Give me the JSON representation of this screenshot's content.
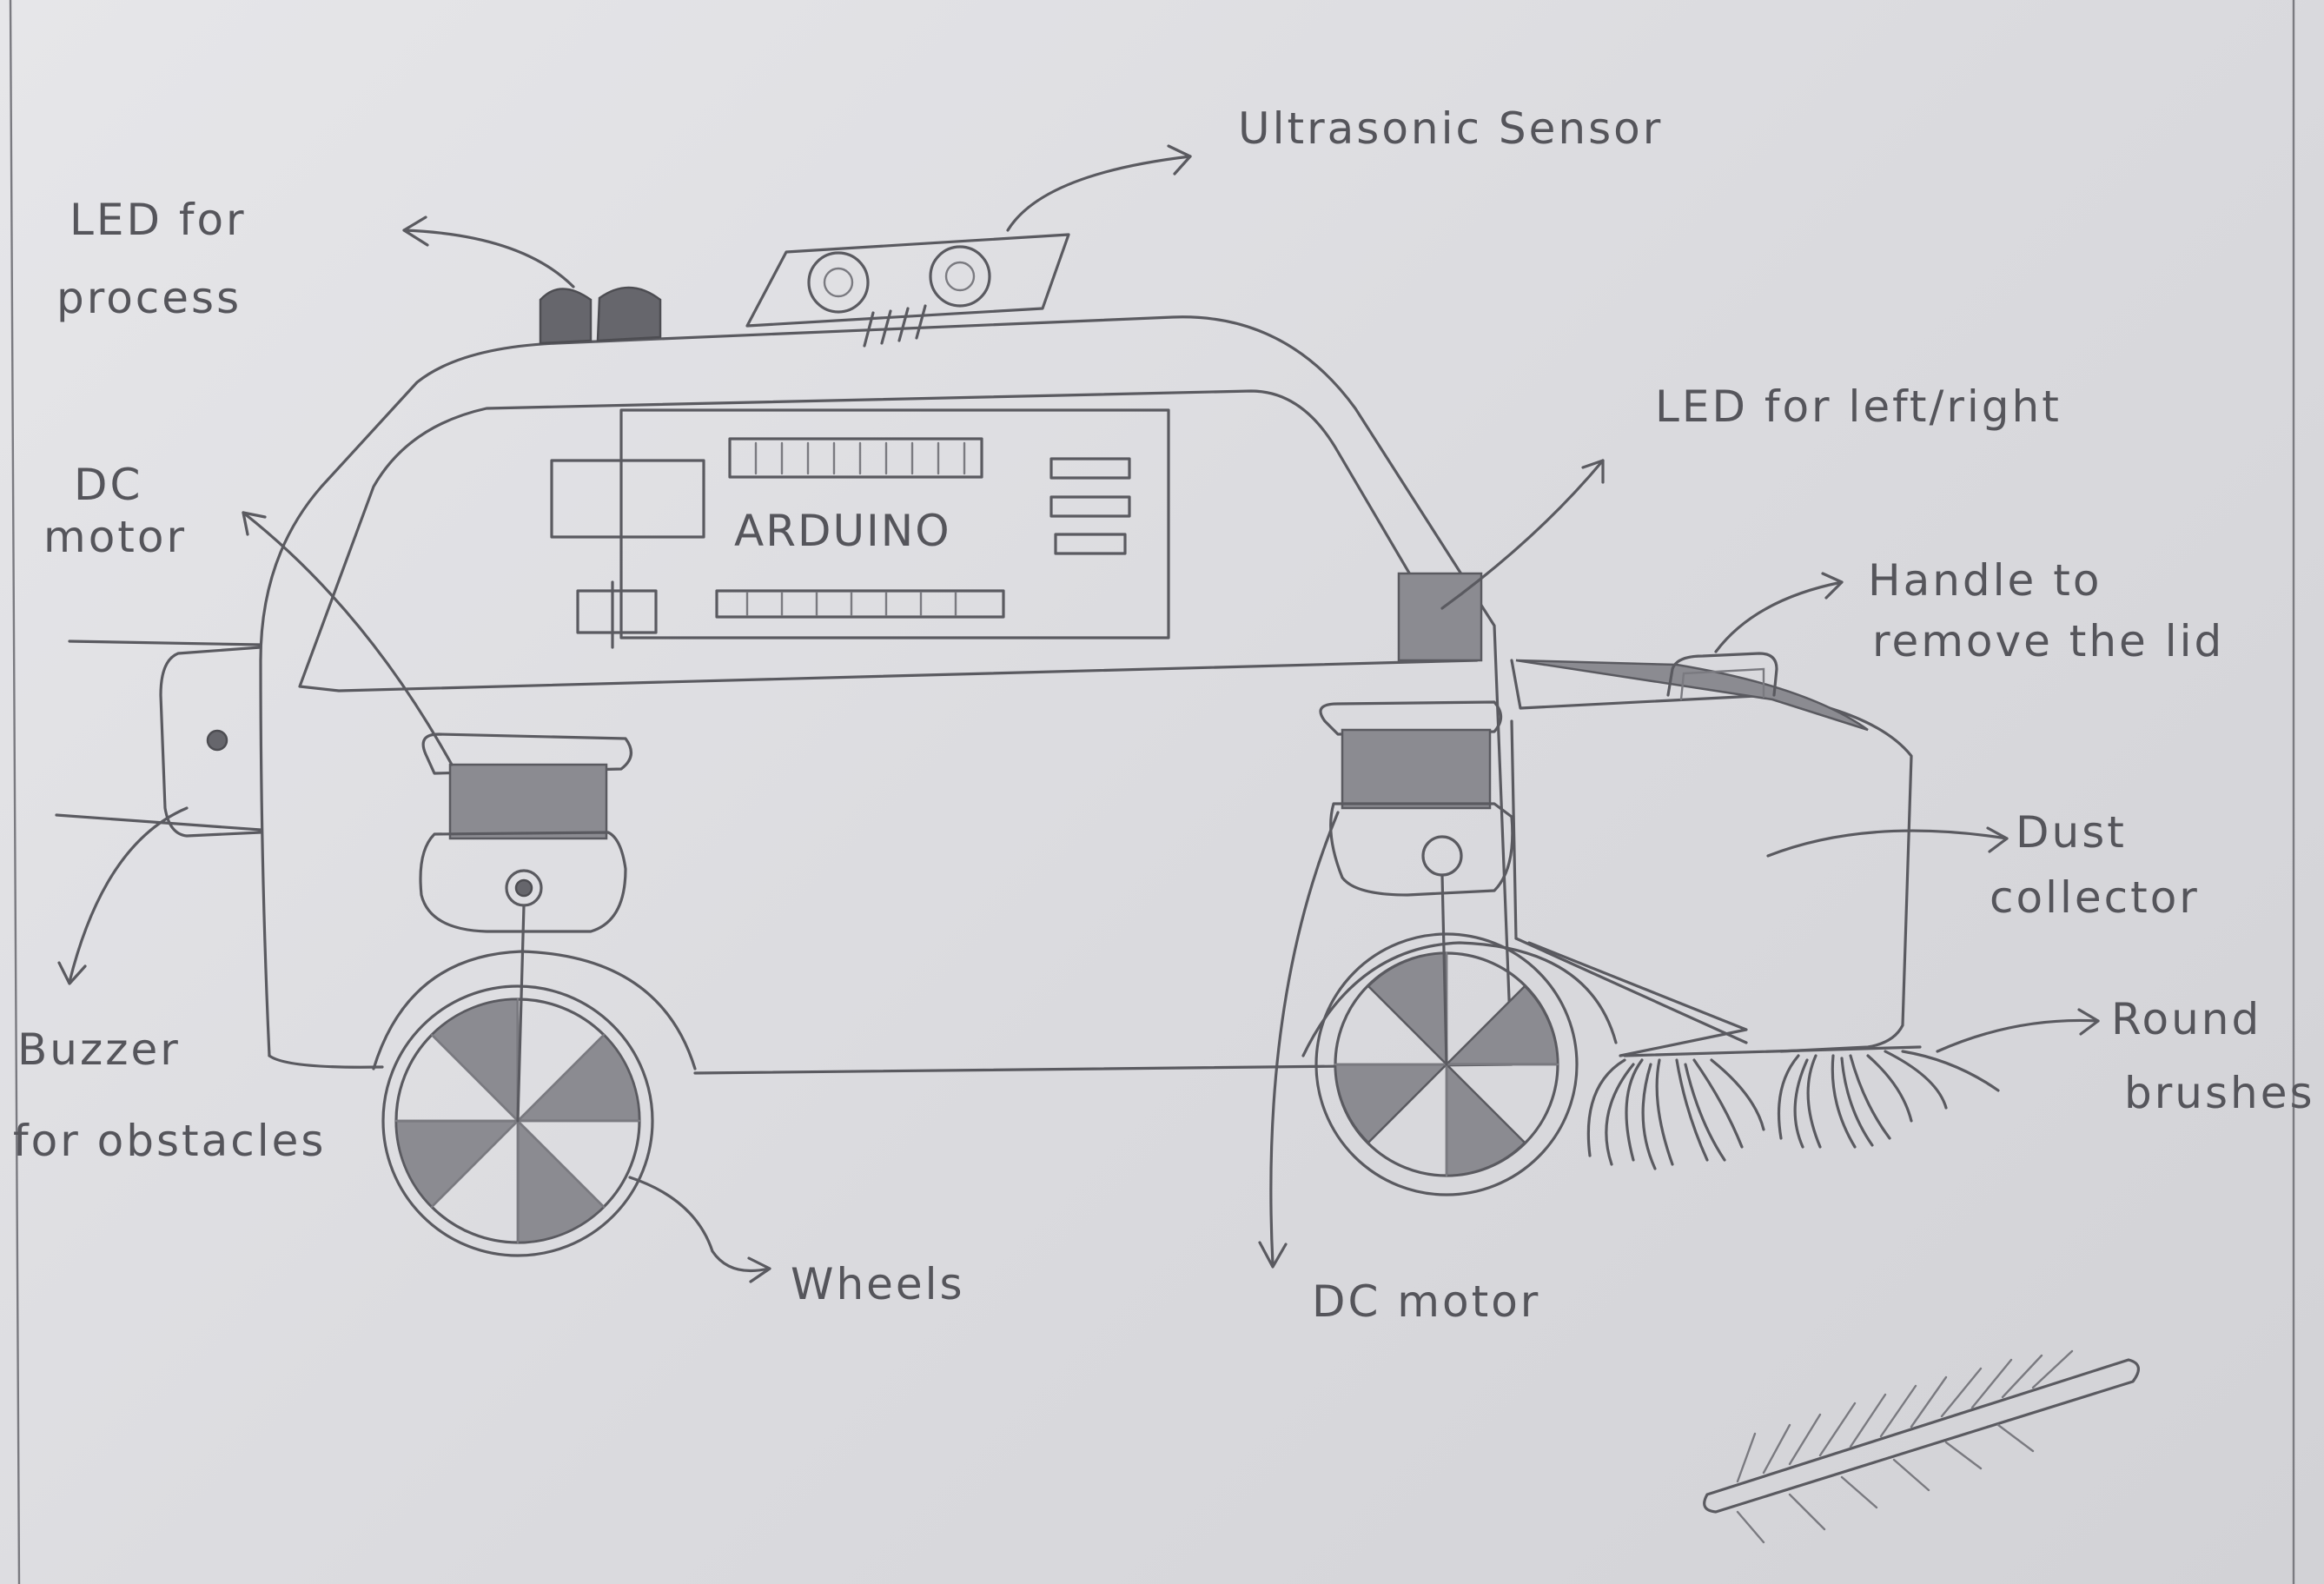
{
  "labels": {
    "led_process_line1": "LED for",
    "led_process_line2": "process",
    "ultrasonic": "Ultrasonic Sensor",
    "led_left_right": "LED for left/right",
    "dc_motor_left_line1": "DC",
    "dc_motor_left_line2": "motor",
    "arduino": "ARDUINO",
    "handle_line1": "Handle to",
    "handle_line2": "remove the lid",
    "dust_line1": "Dust",
    "dust_line2": "collector",
    "round_line1": "Round",
    "round_line2": "brushes",
    "buzzer_line1": "Buzzer",
    "buzzer_line2": "for obstacles",
    "wheels": "Wheels",
    "dc_motor_bottom": "DC motor"
  },
  "colors": {
    "paper": "#dcdcdf",
    "pencil": "#5a5a60",
    "shading": "#8b8b91"
  }
}
